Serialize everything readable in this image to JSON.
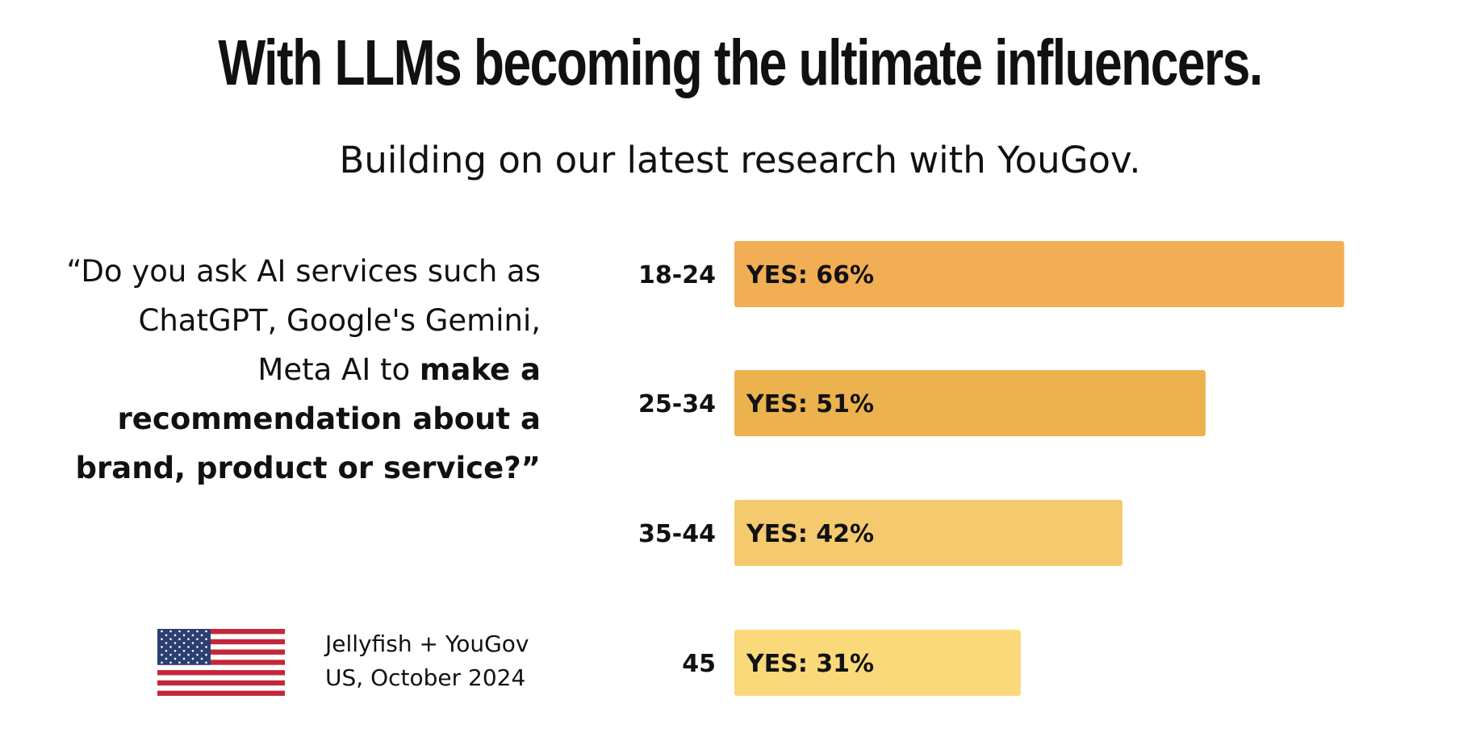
{
  "header": {
    "title": "With LLMs becoming the ultimate influencers.",
    "subtitle": "Building on our latest research with YouGov."
  },
  "question": {
    "plain": "“Do you ask AI services such as ChatGPT, Google's Gemini, Meta AI to ",
    "bold": "make a recommendation about a brand, product or service?”"
  },
  "source": {
    "line1": "Jellyfish + YouGov",
    "line2": "US, October 2024",
    "flag_icon": "us-flag-icon"
  },
  "chart_data": {
    "type": "bar",
    "orientation": "horizontal",
    "categories": [
      "18-24",
      "25-34",
      "35-44",
      "45"
    ],
    "values": [
      66,
      51,
      42,
      31
    ],
    "value_labels": [
      "YES: 66%",
      "YES: 51%",
      "YES: 42%",
      "YES: 31%"
    ],
    "xlim": [
      0,
      100
    ],
    "colors": [
      "#F2AE55",
      "#ECB24E",
      "#F5CA6E",
      "#F9D97A"
    ],
    "grid": false
  }
}
